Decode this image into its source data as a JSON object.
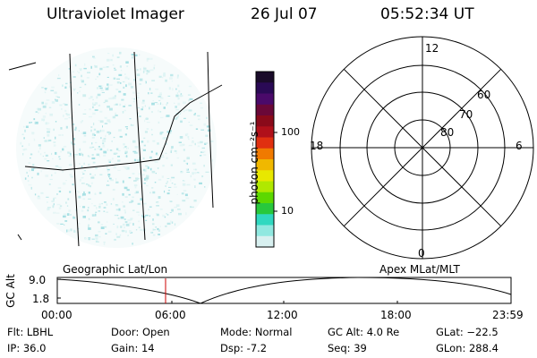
{
  "header": {
    "instrument": "Ultraviolet Imager",
    "date": "26 Jul 07",
    "time": "05:52:34 UT"
  },
  "colorbar": {
    "label": "photon cm⁻²s⁻¹",
    "tick_labels": [
      "100",
      "10"
    ],
    "colors": [
      "#1a0b2a",
      "#2a0a55",
      "#4a0a6a",
      "#6a0838",
      "#8a0a1a",
      "#b0101a",
      "#e03010",
      "#f07a00",
      "#f0b800",
      "#e8e800",
      "#b0e800",
      "#5cd800",
      "#28c83c",
      "#30d8c0",
      "#90e8e0",
      "#d8f0f0"
    ]
  },
  "polar_plot": {
    "lat_labels": [
      "60",
      "70",
      "80"
    ],
    "mlt_labels": {
      "top": "12",
      "left": "18",
      "right": "6",
      "bottom": "0"
    }
  },
  "timeline": {
    "left_label": "Geographic Lat/Lon",
    "right_label": "Apex MLat/MLT",
    "y_axis_title": "GC Alt",
    "y_max": "9.0",
    "y_min": "1.8",
    "x_labels": [
      "00:00",
      "06:00",
      "12:00",
      "18:00",
      "23:59"
    ],
    "current_marker_time": "05:52"
  },
  "info": {
    "flt": "Flt: LBHL",
    "ip": "IP: 36.0",
    "door": "Door: Open",
    "gain": "Gain: 14",
    "mode": "Mode: Normal",
    "dsp": "Dsp:    -7.2",
    "gc_alt": "GC Alt: 4.0 Re",
    "seq": "Seq: 39",
    "glat": "GLat: −22.5",
    "glon": "GLon: 288.4"
  }
}
